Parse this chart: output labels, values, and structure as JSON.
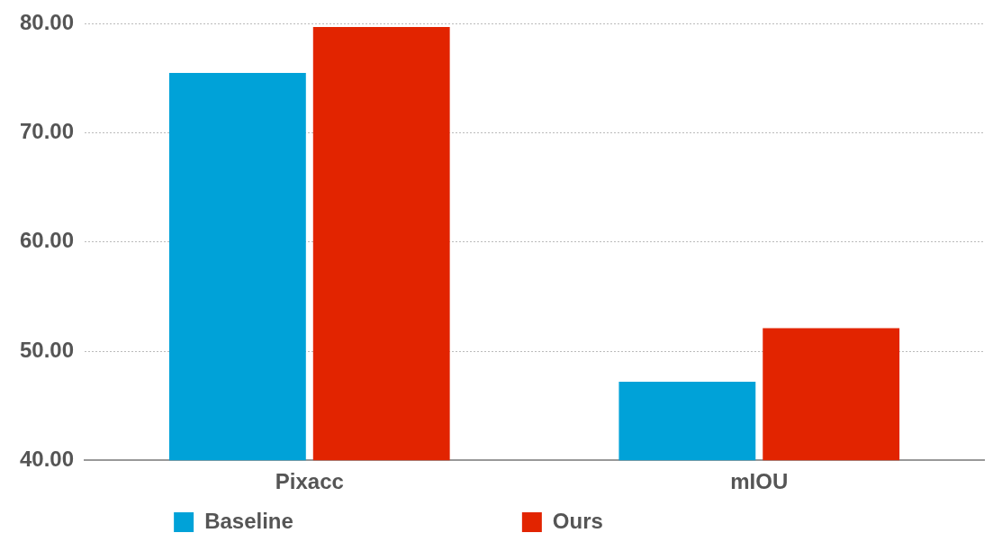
{
  "chart_data": {
    "type": "bar",
    "categories": [
      "Pixacc",
      "mIOU"
    ],
    "series": [
      {
        "name": "Baseline",
        "color": "#00a2d8",
        "values": [
          75.5,
          47.2
        ]
      },
      {
        "name": "Ours",
        "color": "#e22400",
        "values": [
          79.7,
          52.1
        ]
      }
    ],
    "ylim": [
      40,
      80
    ],
    "yticks": [
      {
        "value": 40,
        "label": "40.00"
      },
      {
        "value": 50,
        "label": "50.00"
      },
      {
        "value": 60,
        "label": "60.00"
      },
      {
        "value": 70,
        "label": "70.00"
      },
      {
        "value": 80,
        "label": "80.00"
      }
    ],
    "grid": "y",
    "legend": "bottom"
  }
}
